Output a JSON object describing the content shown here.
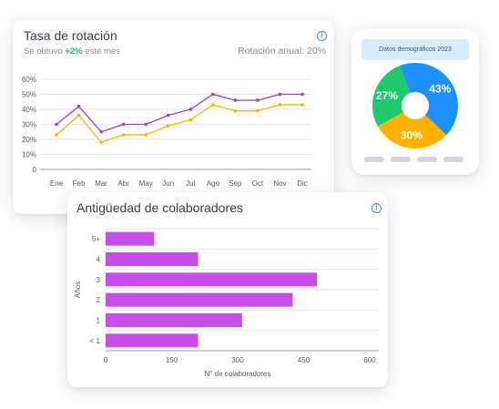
{
  "rotation_card": {
    "title": "Tasa de rotación",
    "subtitle_prefix": "Se obtuvo",
    "subtitle_delta": "+2%",
    "subtitle_suffix": "este mes",
    "annual_label": "Rotación anual: 20%",
    "info_icon": "i"
  },
  "demographics_card": {
    "title": "Datos demográficos 2023",
    "pie_labels": [
      "43%",
      "30%",
      "27%"
    ]
  },
  "tenure_card": {
    "title": "Antigüedad de colaboradores",
    "info_icon": "i"
  },
  "colors": {
    "purple_line": "#9b3fd1",
    "yellow_line": "#f7b500",
    "bar": "#c84de8",
    "pie_blue": "#1e90ff",
    "pie_orange": "#ffb300",
    "pie_green": "#1fca6f",
    "delta_green": "#22b35b"
  },
  "chart_data": [
    {
      "type": "line",
      "categories": [
        "Ene",
        "Feb",
        "Mar",
        "Abr",
        "May",
        "Jun",
        "Jul",
        "Ago",
        "Sep",
        "Oct",
        "Nov",
        "Dic"
      ],
      "series": [
        {
          "values": [
            30,
            42,
            25,
            30,
            30,
            36,
            40,
            50,
            46,
            46,
            50,
            50
          ]
        },
        {
          "values": [
            23,
            36,
            18,
            23,
            23,
            29,
            33,
            43,
            39,
            39,
            43,
            43
          ]
        }
      ],
      "yticks": [
        "0",
        "10%",
        "20%",
        "30%",
        "40%",
        "50%",
        "60%"
      ],
      "ylim": [
        0,
        60
      ]
    },
    {
      "type": "pie",
      "values": [
        43,
        30,
        27
      ],
      "labels": [
        "43%",
        "30%",
        "27%"
      ]
    },
    {
      "type": "bar",
      "orientation": "horizontal",
      "categories": [
        "5+",
        "4",
        "3",
        "2",
        "1",
        "< 1"
      ],
      "values": [
        110,
        210,
        480,
        425,
        310,
        210
      ],
      "xticks": [
        "0",
        "150",
        "300",
        "450",
        "600"
      ],
      "xlim": [
        0,
        600
      ],
      "xlabel": "N° de colaboradores",
      "ylabel": "Años"
    }
  ]
}
